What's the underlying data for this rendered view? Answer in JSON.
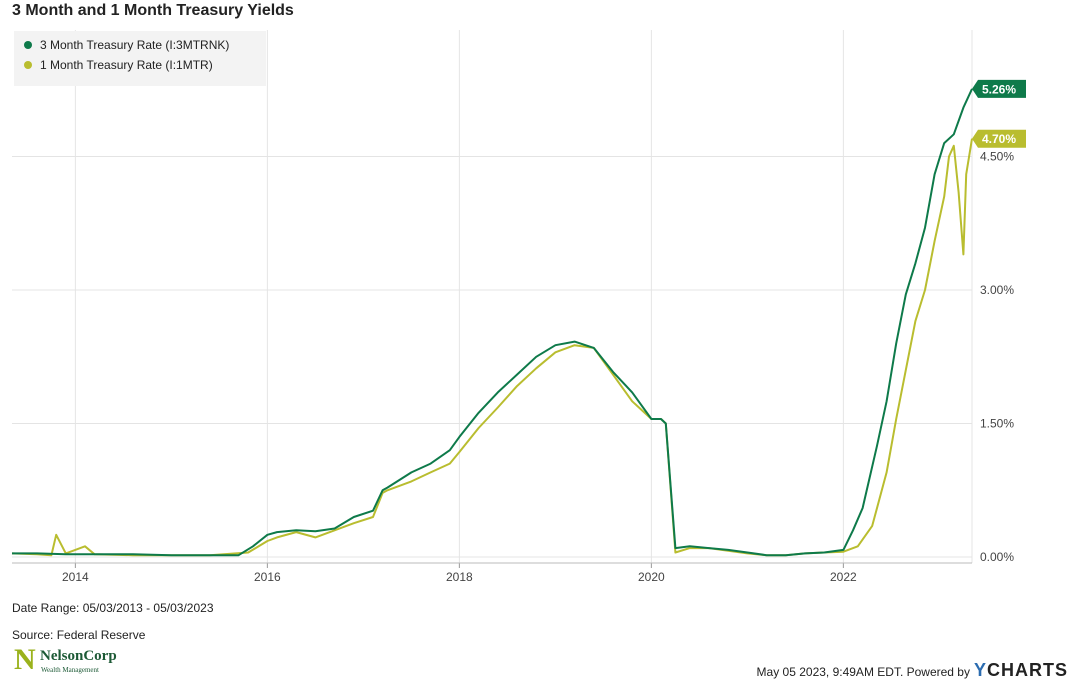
{
  "title": "3 Month and 1 Month Treasury Yields",
  "legend": [
    {
      "label": "3 Month Treasury Rate (I:3MTRNK)",
      "color": "#0e7a4a"
    },
    {
      "label": "1 Month Treasury Rate (I:1MTR)",
      "color": "#b9bd2f"
    }
  ],
  "footer": {
    "date_range": "Date Range: 05/03/2013 - 05/03/2023",
    "source": "Source: Federal Reserve",
    "timestamp": "May 05 2023, 9:49AM EDT.  Powered by",
    "brand": "CHARTS",
    "brand_prefix": "Y"
  },
  "logo": {
    "name": "NelsonCorp",
    "tagline": "Wealth Management"
  },
  "chart_data": {
    "type": "line",
    "title": "3 Month and 1 Month Treasury Yields",
    "xlim": [
      2013.34,
      2023.34
    ],
    "ylim": [
      0,
      4.5
    ],
    "x_ticks": [
      2014,
      2016,
      2018,
      2020,
      2022
    ],
    "x_tick_labels": [
      "2014",
      "2016",
      "2018",
      "2020",
      "2022"
    ],
    "y_ticks": [
      0,
      1.5,
      3.0,
      4.5
    ],
    "y_tick_labels": [
      "0.00%",
      "1.50%",
      "3.00%",
      "4.50%"
    ],
    "grid": true,
    "legend_position": "top-left",
    "series": [
      {
        "name": "3 Month Treasury Rate (I:3MTRNK)",
        "color": "#0e7a4a",
        "end_label": "5.26%",
        "x": [
          2013.34,
          2013.6,
          2013.9,
          2014.2,
          2014.6,
          2015.0,
          2015.4,
          2015.7,
          2015.85,
          2016.0,
          2016.1,
          2016.3,
          2016.5,
          2016.7,
          2016.9,
          2017.1,
          2017.2,
          2017.25,
          2017.5,
          2017.7,
          2017.9,
          2018.0,
          2018.2,
          2018.4,
          2018.6,
          2018.8,
          2019.0,
          2019.2,
          2019.4,
          2019.6,
          2019.8,
          2020.0,
          2020.1,
          2020.15,
          2020.25,
          2020.4,
          2020.6,
          2020.8,
          2021.0,
          2021.2,
          2021.4,
          2021.6,
          2021.8,
          2022.0,
          2022.1,
          2022.2,
          2022.35,
          2022.45,
          2022.55,
          2022.65,
          2022.75,
          2022.85,
          2022.95,
          2023.05,
          2023.15,
          2023.25,
          2023.34
        ],
        "y": [
          0.04,
          0.04,
          0.03,
          0.03,
          0.03,
          0.02,
          0.02,
          0.02,
          0.12,
          0.25,
          0.28,
          0.3,
          0.29,
          0.32,
          0.45,
          0.52,
          0.75,
          0.78,
          0.95,
          1.05,
          1.2,
          1.35,
          1.62,
          1.85,
          2.05,
          2.25,
          2.38,
          2.42,
          2.35,
          2.08,
          1.85,
          1.55,
          1.55,
          1.5,
          0.1,
          0.12,
          0.1,
          0.08,
          0.05,
          0.02,
          0.02,
          0.04,
          0.05,
          0.08,
          0.3,
          0.55,
          1.25,
          1.75,
          2.4,
          2.95,
          3.3,
          3.7,
          4.3,
          4.65,
          4.75,
          5.05,
          5.26
        ]
      },
      {
        "name": "1 Month Treasury Rate (I:1MTR)",
        "color": "#b9bd2f",
        "end_label": "4.70%",
        "x": [
          2013.34,
          2013.6,
          2013.75,
          2013.8,
          2013.9,
          2014.1,
          2014.2,
          2014.6,
          2015.0,
          2015.4,
          2015.8,
          2016.0,
          2016.1,
          2016.3,
          2016.5,
          2016.7,
          2016.9,
          2017.1,
          2017.2,
          2017.25,
          2017.5,
          2017.7,
          2017.9,
          2018.0,
          2018.2,
          2018.4,
          2018.6,
          2018.8,
          2019.0,
          2019.2,
          2019.4,
          2019.6,
          2019.8,
          2020.0,
          2020.1,
          2020.15,
          2020.25,
          2020.4,
          2020.6,
          2020.8,
          2021.0,
          2021.2,
          2021.4,
          2021.6,
          2021.8,
          2022.0,
          2022.15,
          2022.3,
          2022.45,
          2022.55,
          2022.65,
          2022.75,
          2022.85,
          2022.95,
          2023.05,
          2023.1,
          2023.15,
          2023.2,
          2023.25,
          2023.28,
          2023.34
        ],
        "y": [
          0.04,
          0.03,
          0.02,
          0.25,
          0.04,
          0.12,
          0.03,
          0.02,
          0.02,
          0.02,
          0.05,
          0.18,
          0.22,
          0.28,
          0.22,
          0.3,
          0.38,
          0.45,
          0.72,
          0.75,
          0.85,
          0.95,
          1.05,
          1.18,
          1.45,
          1.68,
          1.92,
          2.12,
          2.3,
          2.38,
          2.35,
          2.05,
          1.75,
          1.55,
          1.55,
          1.5,
          0.05,
          0.1,
          0.1,
          0.07,
          0.04,
          0.02,
          0.02,
          0.04,
          0.05,
          0.06,
          0.12,
          0.35,
          0.95,
          1.55,
          2.1,
          2.65,
          3.0,
          3.55,
          4.05,
          4.5,
          4.62,
          4.1,
          3.4,
          4.3,
          4.7
        ]
      }
    ]
  }
}
